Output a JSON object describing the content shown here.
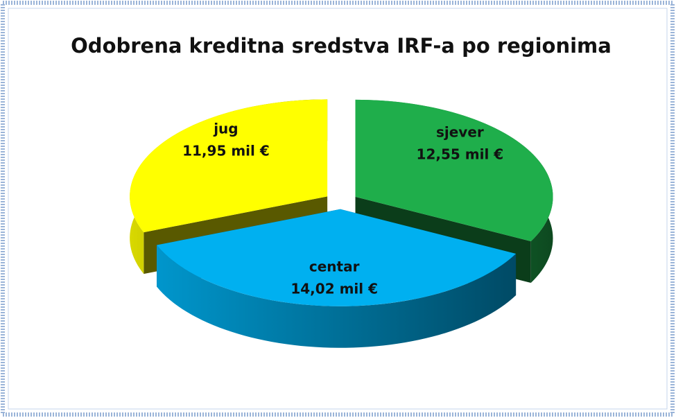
{
  "chart_data": {
    "type": "pie3d",
    "title": "Odobrena kreditna sredstva IRF-a po regionima",
    "categories": [
      "sjever",
      "centar",
      "jug"
    ],
    "values": [
      12.55,
      14.02,
      11.95
    ],
    "value_labels": [
      "12,55 mil €",
      "14,02 mil €",
      "11,95 mil €"
    ],
    "colors": [
      "#1fae4b",
      "#00b0f0",
      "#ffff00"
    ]
  }
}
